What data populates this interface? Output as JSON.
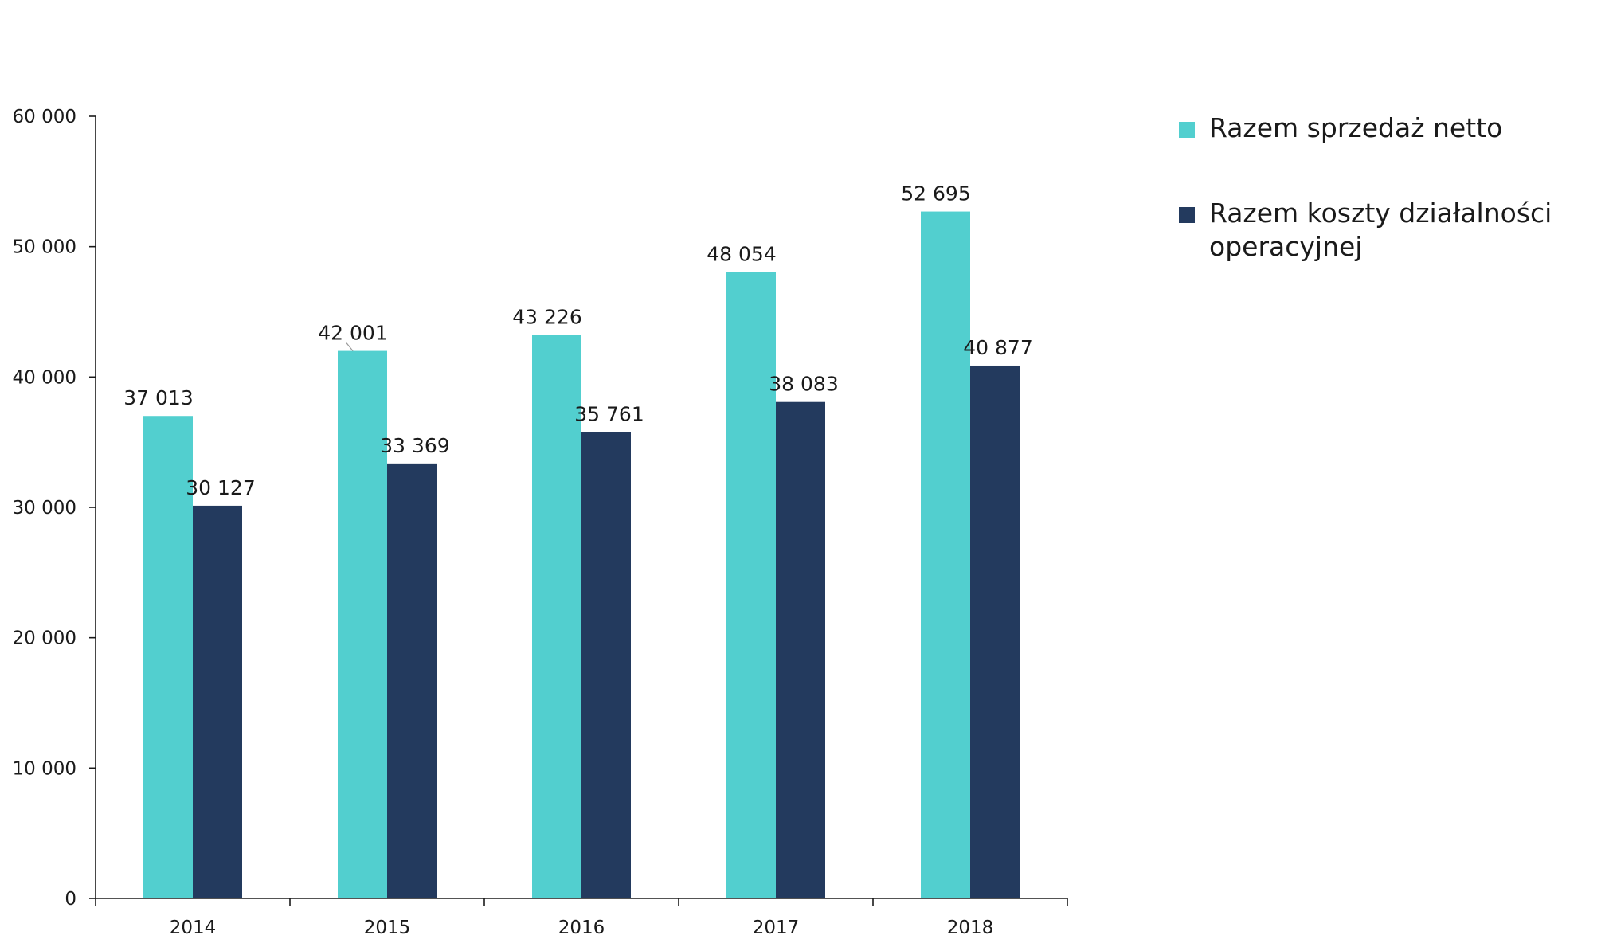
{
  "chart_data": {
    "type": "bar",
    "categories": [
      "2014",
      "2015",
      "2016",
      "2017",
      "2018"
    ],
    "series": [
      {
        "name": "Razem sprzedaż netto",
        "color": "#52cfcf",
        "values": [
          37013,
          42001,
          43226,
          48054,
          52695
        ],
        "labels": [
          "37 013",
          "42 001",
          "43 226",
          "48 054",
          "52 695"
        ]
      },
      {
        "name": "Razem koszty działalności operacyjnej",
        "color": "#233a5e",
        "values": [
          30127,
          33369,
          35761,
          38083,
          40877
        ],
        "labels": [
          "30 127",
          "33 369",
          "35 761",
          "38 083",
          "40 877"
        ]
      }
    ],
    "yticks": [
      0,
      10000,
      20000,
      30000,
      40000,
      50000,
      60000
    ],
    "ytick_labels": [
      "0",
      "10 000",
      "20 000",
      "30 000",
      "40 000",
      "50 000",
      "60 000"
    ],
    "ylim": [
      0,
      60000
    ],
    "grid": false,
    "legend_position": "top-right"
  }
}
